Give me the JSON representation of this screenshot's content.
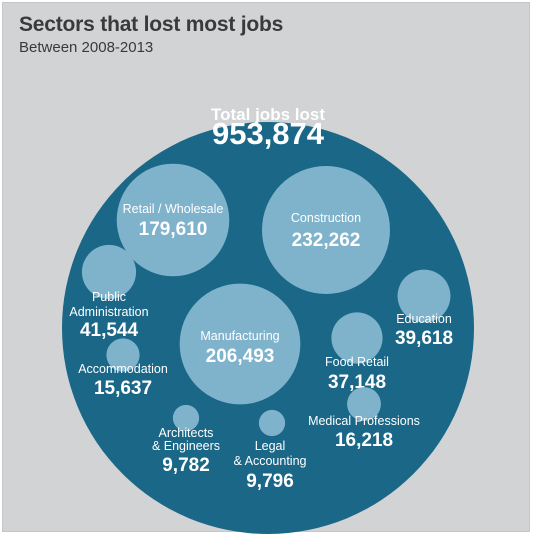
{
  "header": {
    "title": "Sectors that lost most jobs",
    "subtitle": "Between 2008-2013"
  },
  "colors": {
    "panel_bg": "#d1d3d4",
    "outer_circle": "#1a6788",
    "bubble": "#7fb3cc",
    "text": "#ffffff",
    "title_text": "#3a3a3a"
  },
  "chart_data": {
    "type": "bubble",
    "title": "Sectors that lost most jobs",
    "subtitle": "Between 2008-2013",
    "total": {
      "label": "Total jobs lost",
      "value": 953874,
      "display": "953,874"
    },
    "sectors": [
      {
        "name": "Construction",
        "lines": [
          "Construction"
        ],
        "value": 232262,
        "display": "232,262",
        "label_inside": true
      },
      {
        "name": "Manufacturing",
        "lines": [
          "Manufacturing"
        ],
        "value": 206493,
        "display": "206,493",
        "label_inside": true
      },
      {
        "name": "Retail / Wholesale",
        "lines": [
          "Retail / Wholesale"
        ],
        "value": 179610,
        "display": "179,610",
        "label_inside": true
      },
      {
        "name": "Public Administration",
        "lines": [
          "Public",
          "Administration"
        ],
        "value": 41544,
        "display": "41,544",
        "label_inside": false
      },
      {
        "name": "Education",
        "lines": [
          "Education"
        ],
        "value": 39618,
        "display": "39,618",
        "label_inside": false
      },
      {
        "name": "Food Retail",
        "lines": [
          "Food Retail"
        ],
        "value": 37148,
        "display": "37,148",
        "label_inside": false
      },
      {
        "name": "Medical Professions",
        "lines": [
          "Medical Professions"
        ],
        "value": 16218,
        "display": "16,218",
        "label_inside": false
      },
      {
        "name": "Accommodation",
        "lines": [
          "Accommodation"
        ],
        "value": 15637,
        "display": "15,637",
        "label_inside": false
      },
      {
        "name": "Legal & Accounting",
        "lines": [
          "Legal",
          "& Accounting"
        ],
        "value": 9796,
        "display": "9,796",
        "label_inside": false
      },
      {
        "name": "Architects & Engineers",
        "lines": [
          "Architects",
          "& Engineers"
        ],
        "value": 9782,
        "display": "9,782",
        "label_inside": false
      }
    ]
  }
}
